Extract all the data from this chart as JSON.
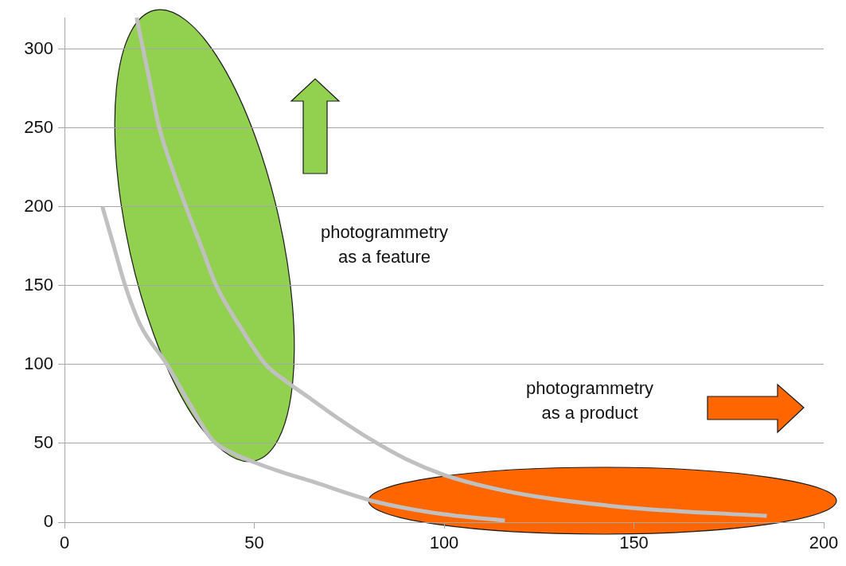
{
  "chart_data": {
    "type": "line",
    "xlim": [
      0,
      200
    ],
    "xticks": [
      0,
      50,
      100,
      150,
      200
    ],
    "ylim": [
      0,
      320
    ],
    "yticks": [
      0,
      50,
      100,
      150,
      200,
      250,
      300
    ],
    "grid": "y",
    "marker": "none",
    "line_style": "solid",
    "series": [
      {
        "color": "#c0c0c0",
        "x": [
          19,
          22,
          25,
          29,
          32,
          36,
          40,
          46,
          53,
          58,
          65,
          72,
          81,
          90,
          100,
          112,
          125,
          150,
          185
        ],
        "values": [
          320,
          285,
          250,
          220,
          200,
          175,
          150,
          125,
          100,
          90,
          78,
          66,
          52,
          40,
          30,
          22,
          16,
          9,
          4
        ]
      },
      {
        "color": "#c0c0c0",
        "x": [
          10,
          13,
          16,
          20,
          27,
          33,
          39,
          45,
          50,
          57,
          65,
          82,
          100,
          116
        ],
        "values": [
          200,
          175,
          150,
          125,
          100,
          75,
          52,
          43,
          38,
          32,
          26,
          13,
          5,
          1
        ]
      }
    ],
    "annotations": [
      "photogrammetry\nas a feature",
      "photogrammetry\nas a product"
    ]
  }
}
